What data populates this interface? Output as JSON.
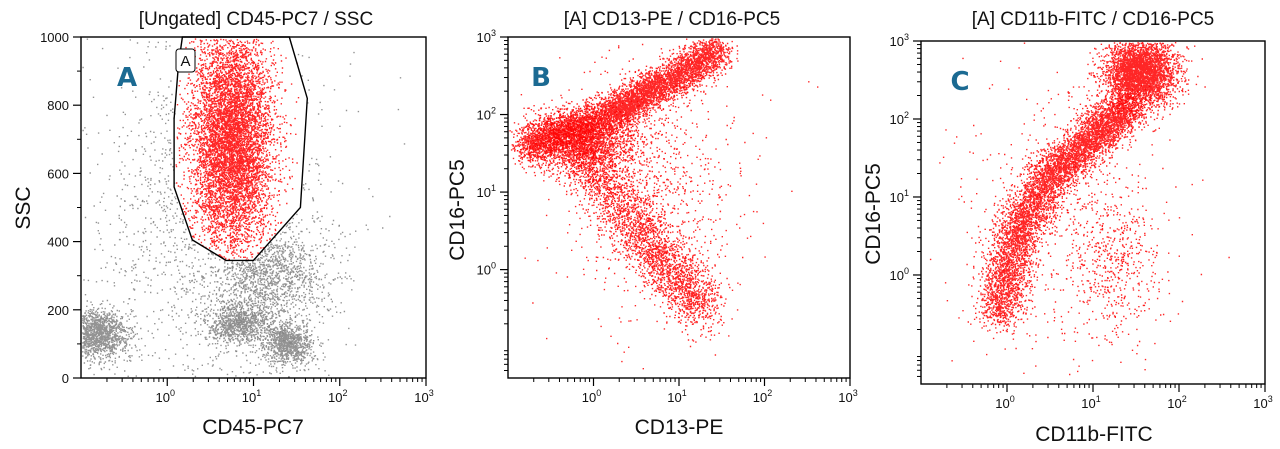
{
  "figure": {
    "background": "#ffffff",
    "event_color": "#ff0000",
    "ungated_color": "#808080",
    "letter_color": "#1b6a92"
  },
  "chart_data": [
    {
      "type": "scatter",
      "panel_letter": "A",
      "title": "[Ungated] CD45-PC7 / SSC",
      "xlabel": "CD45-PC7",
      "ylabel": "SSC",
      "x_scale": "log",
      "y_scale": "linear",
      "xlim": [
        0.1,
        1000
      ],
      "ylim": [
        0,
        1000
      ],
      "x_ticks": [
        {
          "base": "10",
          "exp": "0",
          "value": 1
        },
        {
          "base": "10",
          "exp": "1",
          "value": 10
        },
        {
          "base": "10",
          "exp": "2",
          "value": 100
        },
        {
          "base": "10",
          "exp": "3",
          "value": 1000
        }
      ],
      "y_ticks": [
        {
          "label": "0",
          "value": 0
        },
        {
          "label": "200",
          "value": 200
        },
        {
          "label": "400",
          "value": 400
        },
        {
          "label": "600",
          "value": 600
        },
        {
          "label": "800",
          "value": 800
        },
        {
          "label": "1000",
          "value": 1000
        }
      ],
      "gate": {
        "name": "A",
        "polygon": [
          [
            1.5,
            1000
          ],
          [
            26,
            1000
          ],
          [
            42,
            820
          ],
          [
            35,
            500
          ],
          [
            10,
            345
          ],
          [
            4.8,
            345
          ],
          [
            1.95,
            405
          ],
          [
            1.2,
            560
          ],
          [
            1.2,
            760
          ],
          [
            1.35,
            920
          ]
        ]
      },
      "populations": [
        {
          "name": "gated-granulocytes",
          "color": "#ff0000",
          "count": 7200,
          "x_center": 5.5,
          "x_spread_log10": 0.24,
          "y_center": 700,
          "y_spread": 160
        },
        {
          "name": "lymphocytes",
          "color": "#808080",
          "count": 1400,
          "x_center": 0.15,
          "x_spread_log10": 0.18,
          "y_center": 130,
          "y_spread": 35
        },
        {
          "name": "monocytes",
          "color": "#808080",
          "count": 900,
          "x_center": 6.5,
          "x_spread_log10": 0.2,
          "y_center": 160,
          "y_spread": 30
        },
        {
          "name": "bright-cluster",
          "color": "#808080",
          "count": 900,
          "x_center": 25,
          "x_spread_log10": 0.14,
          "y_center": 100,
          "y_spread": 30
        },
        {
          "name": "mid-band",
          "color": "#808080",
          "count": 1300,
          "x_center": 15,
          "x_spread_log10": 0.35,
          "y_center": 300,
          "y_spread": 70
        },
        {
          "name": "debris",
          "color": "#808080",
          "count": 1700,
          "x_center": 3,
          "x_spread_log10": 0.7,
          "y_center": 450,
          "y_spread": 260
        }
      ]
    },
    {
      "type": "scatter",
      "panel_letter": "B",
      "title": "[A] CD13-PE  /  CD16-PC5",
      "xlabel": "CD13-PE",
      "ylabel": "CD16-PC5",
      "x_scale": "log",
      "y_scale": "log",
      "xlim": [
        0.1,
        1000
      ],
      "ylim": [
        0.04,
        1000
      ],
      "x_ticks": [
        {
          "base": "10",
          "exp": "0",
          "value": 1
        },
        {
          "base": "10",
          "exp": "1",
          "value": 10
        },
        {
          "base": "10",
          "exp": "2",
          "value": 100
        },
        {
          "base": "10",
          "exp": "3",
          "value": 1000
        }
      ],
      "y_ticks": [
        {
          "base": "10",
          "exp": "0",
          "value": 1
        },
        {
          "base": "10",
          "exp": "1",
          "value": 10
        },
        {
          "base": "10",
          "exp": "2",
          "value": 100
        },
        {
          "base": "10",
          "exp": "3",
          "value": 1000
        }
      ],
      "populations": [
        {
          "name": "upper-arm",
          "color": "#ff0000",
          "count": 5500,
          "path": [
            [
              0.15,
              40
            ],
            [
              1.5,
              100
            ],
            [
              6,
              240
            ],
            [
              30,
              700
            ]
          ],
          "x_spread_log10": 0.1,
          "y_spread_log10": 0.12
        },
        {
          "name": "left-cluster",
          "color": "#ff0000",
          "count": 2200,
          "x_center": 0.7,
          "x_spread_log10": 0.32,
          "y_center": 45,
          "y_spread_log10": 0.2
        },
        {
          "name": "lower-arm",
          "color": "#ff0000",
          "count": 2600,
          "path": [
            [
              0.7,
              30
            ],
            [
              2.5,
              5
            ],
            [
              8,
              1
            ],
            [
              20,
              0.3
            ]
          ],
          "x_spread_log10": 0.15,
          "y_spread_log10": 0.2
        },
        {
          "name": "scatter",
          "color": "#ff0000",
          "count": 900,
          "x_center": 5,
          "x_spread_log10": 0.5,
          "y_center": 10,
          "y_spread_log10": 0.8
        }
      ]
    },
    {
      "type": "scatter",
      "panel_letter": "C",
      "title": "[A] CD11b-FITC  /  CD16-PC5",
      "xlabel": "CD11b-FITC",
      "ylabel": "CD16-PC5",
      "x_scale": "log",
      "y_scale": "log",
      "xlim": [
        0.1,
        1000
      ],
      "ylim": [
        0.04,
        1000
      ],
      "x_ticks": [
        {
          "base": "10",
          "exp": "0",
          "value": 1
        },
        {
          "base": "10",
          "exp": "1",
          "value": 10
        },
        {
          "base": "10",
          "exp": "2",
          "value": 100
        },
        {
          "base": "10",
          "exp": "3",
          "value": 1000
        }
      ],
      "y_ticks": [
        {
          "base": "10",
          "exp": "0",
          "value": 1
        },
        {
          "base": "10",
          "exp": "1",
          "value": 10
        },
        {
          "base": "10",
          "exp": "2",
          "value": 100
        },
        {
          "base": "10",
          "exp": "3",
          "value": 1000
        }
      ],
      "populations": [
        {
          "name": "diagonal",
          "color": "#ff0000",
          "count": 6000,
          "path": [
            [
              0.8,
              0.3
            ],
            [
              1.2,
              3
            ],
            [
              3,
              18
            ],
            [
              10,
              60
            ],
            [
              25,
              150
            ]
          ],
          "x_spread_log10": 0.14,
          "y_spread_log10": 0.12
        },
        {
          "name": "top-cluster",
          "color": "#ff0000",
          "count": 3600,
          "x_center": 35,
          "x_spread_log10": 0.2,
          "y_center": 400,
          "y_spread_log10": 0.22
        },
        {
          "name": "right-scatter",
          "color": "#ff0000",
          "count": 500,
          "x_center": 18,
          "x_spread_log10": 0.3,
          "y_center": 1.5,
          "y_spread_log10": 0.5
        },
        {
          "name": "sparse",
          "color": "#ff0000",
          "count": 500,
          "x_center": 4,
          "x_spread_log10": 0.6,
          "y_center": 8,
          "y_spread_log10": 0.9
        }
      ]
    }
  ]
}
